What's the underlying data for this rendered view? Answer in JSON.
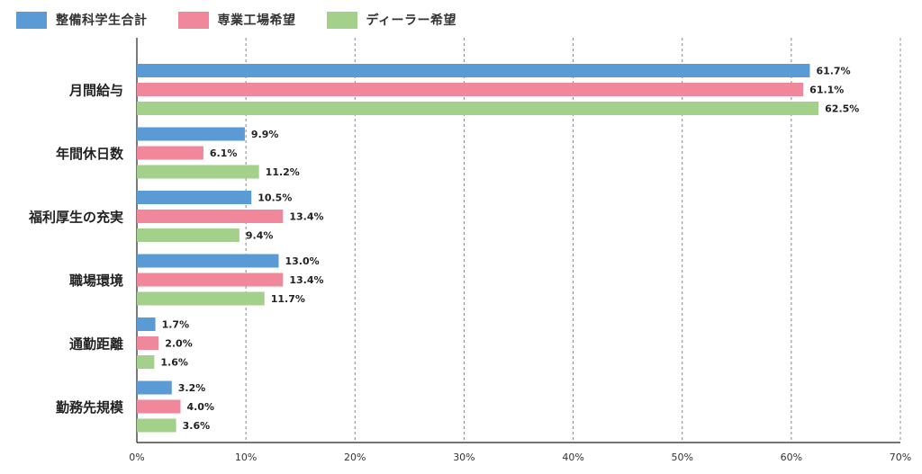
{
  "chart_data": {
    "type": "bar",
    "orientation": "horizontal",
    "title": "",
    "xlabel": "",
    "ylabel": "",
    "xlim": [
      0,
      70
    ],
    "x_ticks": [
      "0%",
      "10%",
      "20%",
      "30%",
      "40%",
      "50%",
      "60%",
      "70%"
    ],
    "grid": "vertical-dashed",
    "legend_position": "top-left",
    "categories": [
      "月間給与",
      "年間休日数",
      "福利厚生の充実",
      "職場環境",
      "通勤距離",
      "勤務先規模"
    ],
    "series": [
      {
        "name": "整備科学生合計",
        "color": "#5b9bd5",
        "values": [
          61.7,
          9.9,
          10.5,
          13.0,
          1.7,
          3.2
        ],
        "labels": [
          "61.7%",
          "9.9%",
          "10.5%",
          "13.0%",
          "1.7%",
          "3.2%"
        ]
      },
      {
        "name": "専業工場希望",
        "color": "#f0879a",
        "values": [
          61.1,
          6.1,
          13.4,
          13.4,
          2.0,
          4.0
        ],
        "labels": [
          "61.1%",
          "6.1%",
          "13.4%",
          "13.4%",
          "2.0%",
          "4.0%"
        ]
      },
      {
        "name": "ディーラー希望",
        "color": "#a3d18c",
        "values": [
          62.5,
          11.2,
          9.4,
          11.7,
          1.6,
          3.6
        ],
        "labels": [
          "62.5%",
          "11.2%",
          "9.4%",
          "11.7%",
          "1.6%",
          "3.6%"
        ]
      }
    ]
  }
}
